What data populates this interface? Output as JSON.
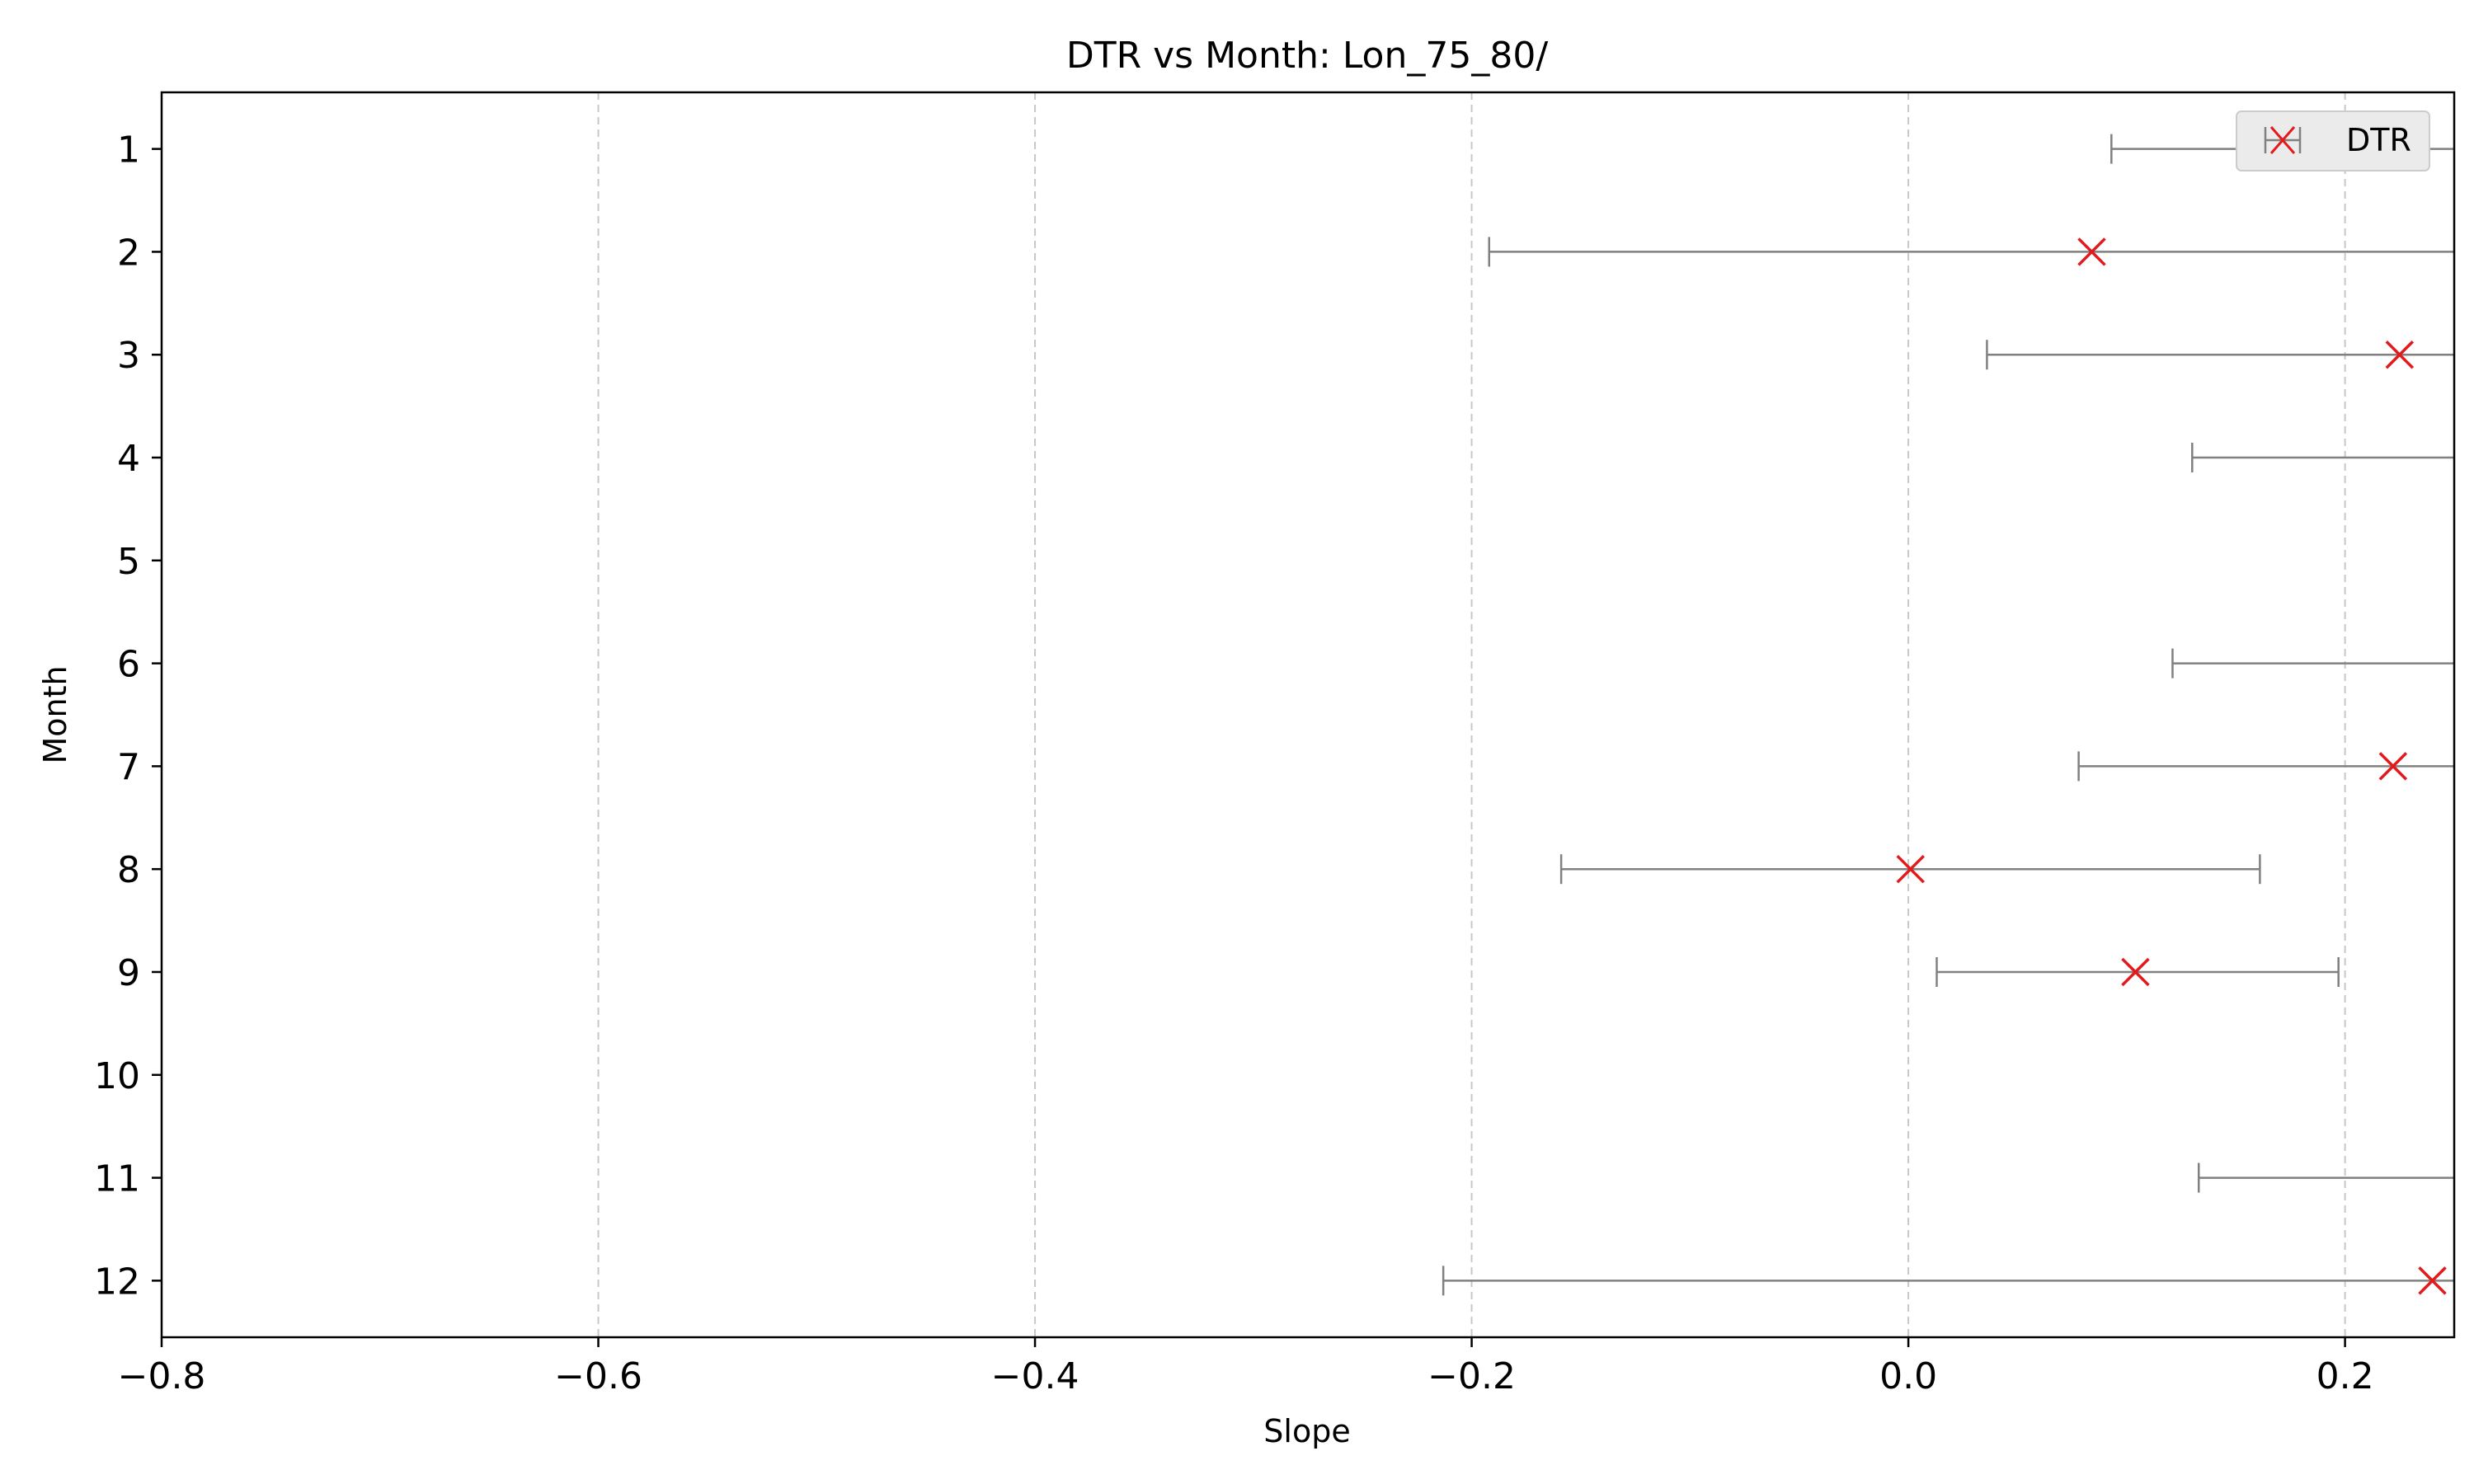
{
  "chart_data": {
    "type": "errorbar",
    "title": "DTR vs Month: Lon_75_80/",
    "xlabel": "Slope",
    "ylabel": "Month",
    "xlim": [
      -0.8,
      0.25
    ],
    "ylim": [
      12.55,
      0.45
    ],
    "x_ticks": [
      -0.8,
      -0.6,
      -0.4,
      -0.2,
      0.0,
      0.2
    ],
    "x_tick_labels": [
      "−0.8",
      "−0.6",
      "−0.4",
      "−0.2",
      "0.0",
      "0.2"
    ],
    "y_ticks": [
      1,
      2,
      3,
      4,
      5,
      6,
      7,
      8,
      9,
      10,
      11,
      12
    ],
    "y_tick_labels": [
      "1",
      "2",
      "3",
      "4",
      "5",
      "6",
      "7",
      "8",
      "9",
      "10",
      "11",
      "12"
    ],
    "grid": "x-dashed",
    "legend": {
      "position": "top-right",
      "entries": [
        "DTR"
      ]
    },
    "colors": {
      "marker": "#e31a1c",
      "errorbar": "#808080",
      "grid": "#c8c8c8"
    },
    "series": [
      {
        "name": "DTR",
        "points": [
          {
            "month": 1,
            "slope": null,
            "ci_low": 0.093,
            "ci_high": null
          },
          {
            "month": 2,
            "slope": 0.084,
            "ci_low": -0.192,
            "ci_high": null
          },
          {
            "month": 3,
            "slope": 0.225,
            "ci_low": 0.036,
            "ci_high": null
          },
          {
            "month": 4,
            "slope": null,
            "ci_low": 0.13,
            "ci_high": null
          },
          {
            "month": 5,
            "slope": null,
            "ci_low": null,
            "ci_high": null
          },
          {
            "month": 6,
            "slope": null,
            "ci_low": 0.121,
            "ci_high": null
          },
          {
            "month": 7,
            "slope": 0.222,
            "ci_low": 0.078,
            "ci_high": null
          },
          {
            "month": 8,
            "slope": 0.001,
            "ci_low": -0.159,
            "ci_high": 0.161
          },
          {
            "month": 9,
            "slope": 0.104,
            "ci_low": 0.013,
            "ci_high": 0.197
          },
          {
            "month": 10,
            "slope": null,
            "ci_low": null,
            "ci_high": null
          },
          {
            "month": 11,
            "slope": null,
            "ci_low": 0.133,
            "ci_high": null
          },
          {
            "month": 12,
            "slope": 0.24,
            "ci_low": -0.213,
            "ci_high": null
          }
        ]
      }
    ]
  }
}
